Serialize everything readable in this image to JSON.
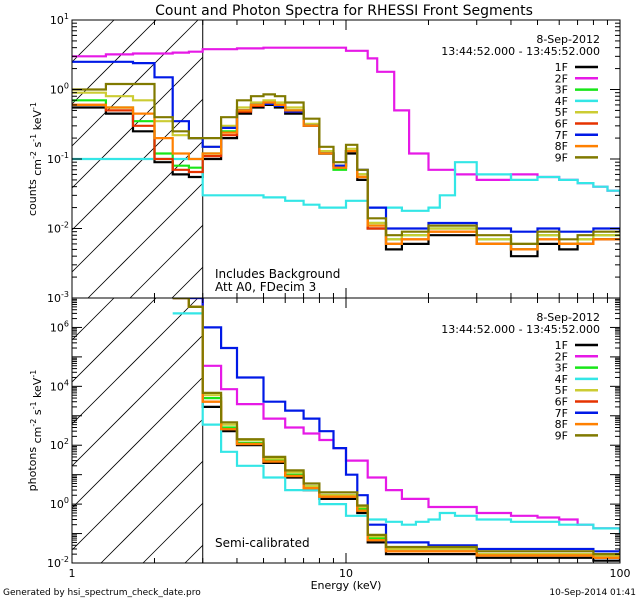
{
  "title": "Count and Photon Spectra for RHESSI Front Segments",
  "footer": {
    "left": "Generated by hsi_spectrum_check_date.pro",
    "right": "10-Sep-2014 01:41"
  },
  "colors": {
    "1F": "#000000",
    "2F": "#e619e6",
    "3F": "#19e619",
    "4F": "#33e6e6",
    "5F": "#cccc33",
    "6F": "#e63300",
    "7F": "#0019e6",
    "8F": "#ff8000",
    "9F": "#807a00"
  },
  "chart_data": [
    {
      "type": "line",
      "panel": "top",
      "title": "Count and Photon Spectra for RHESSI Front Segments",
      "xlabel": "Energy (keV)",
      "ylabel": "counts cm-2 s-1 keV-1",
      "xscale": "log",
      "yscale": "log",
      "xlim": [
        1,
        100
      ],
      "ylim": [
        0.001,
        10
      ],
      "x_ticks": [
        "1",
        "10",
        "100"
      ],
      "y_ticks": [
        "10-3",
        "10-2",
        "10-1",
        "100",
        "101"
      ],
      "date": "8-Sep-2012",
      "time_range": "13:44:52.000 - 13:45:52.000",
      "annotations": [
        "Includes Background",
        "Att A0, FDecim 3"
      ],
      "hatched_region_x": [
        1,
        3
      ],
      "legend": [
        "1F",
        "2F",
        "3F",
        "4F",
        "5F",
        "6F",
        "7F",
        "8F",
        "9F"
      ],
      "series": [
        {
          "name": "1F",
          "x": [
            1,
            1.33,
            1.67,
            2,
            2.33,
            2.67,
            3,
            3.5,
            4,
            4.5,
            5,
            5.5,
            6,
            7,
            8,
            9,
            10,
            11,
            12,
            14,
            16,
            20,
            30,
            40,
            50,
            60,
            70,
            80,
            100
          ],
          "y": [
            0.55,
            0.45,
            0.25,
            0.09,
            0.06,
            0.055,
            0.1,
            0.2,
            0.45,
            0.55,
            0.6,
            0.55,
            0.45,
            0.3,
            0.12,
            0.08,
            0.12,
            0.05,
            0.01,
            0.005,
            0.006,
            0.008,
            0.006,
            0.004,
            0.006,
            0.005,
            0.006,
            0.007,
            0.007
          ]
        },
        {
          "name": "2F",
          "x": [
            1,
            1.33,
            1.67,
            2,
            2.33,
            2.67,
            3,
            4,
            5,
            6,
            8,
            10,
            12,
            13,
            15,
            17,
            20,
            25,
            30,
            40,
            50,
            60,
            70,
            80,
            90,
            100
          ],
          "y": [
            3.0,
            3.2,
            3.3,
            3.3,
            3.4,
            3.5,
            3.8,
            3.9,
            4.0,
            4.0,
            4.0,
            3.6,
            2.8,
            1.8,
            0.5,
            0.12,
            0.07,
            0.06,
            0.05,
            0.06,
            0.055,
            0.05,
            0.045,
            0.04,
            0.035,
            0.03
          ]
        },
        {
          "name": "3F",
          "x": [
            1,
            1.33,
            1.67,
            2,
            2.33,
            2.67,
            3,
            3.5,
            4,
            4.5,
            5,
            5.5,
            6,
            7,
            8,
            9,
            10,
            11,
            12,
            14,
            16,
            20,
            30,
            40,
            50,
            60,
            70,
            80,
            100
          ],
          "y": [
            0.7,
            0.55,
            0.35,
            0.12,
            0.08,
            0.075,
            0.12,
            0.25,
            0.5,
            0.6,
            0.65,
            0.6,
            0.5,
            0.3,
            0.12,
            0.07,
            0.13,
            0.06,
            0.012,
            0.007,
            0.008,
            0.01,
            0.007,
            0.005,
            0.008,
            0.006,
            0.007,
            0.008,
            0.008
          ]
        },
        {
          "name": "4F",
          "x": [
            1,
            1.33,
            1.67,
            2,
            2.33,
            2.67,
            3,
            4,
            5,
            6,
            7,
            8,
            9,
            10,
            12,
            14,
            16,
            18,
            20,
            22,
            25,
            30,
            40,
            50,
            60,
            70,
            80,
            90,
            100
          ],
          "y": [
            0.1,
            0.1,
            0.1,
            0.1,
            0.1,
            0.1,
            0.03,
            0.03,
            0.028,
            0.025,
            0.022,
            0.02,
            0.02,
            0.025,
            0.02,
            0.02,
            0.018,
            0.018,
            0.02,
            0.03,
            0.09,
            0.06,
            0.05,
            0.055,
            0.05,
            0.045,
            0.04,
            0.035,
            0.03
          ]
        },
        {
          "name": "5F",
          "x": [
            1,
            1.33,
            1.67,
            2,
            2.33,
            2.67,
            3,
            3.5,
            4,
            4.5,
            5,
            5.5,
            6,
            7,
            8,
            9,
            10,
            11,
            12,
            14,
            16,
            20,
            30,
            40,
            50,
            60,
            70,
            80,
            100
          ],
          "y": [
            0.9,
            0.8,
            0.7,
            0.35,
            0.22,
            0.2,
            0.15,
            0.3,
            0.55,
            0.65,
            0.7,
            0.65,
            0.55,
            0.32,
            0.13,
            0.08,
            0.14,
            0.06,
            0.012,
            0.007,
            0.008,
            0.01,
            0.007,
            0.006,
            0.008,
            0.006,
            0.007,
            0.008,
            0.008
          ]
        },
        {
          "name": "6F",
          "x": [
            1,
            1.33,
            1.67,
            2,
            2.33,
            2.67,
            3,
            3.5,
            4,
            4.5,
            5,
            5.5,
            6,
            7,
            8,
            9,
            10,
            11,
            12,
            14,
            16,
            20,
            30,
            40,
            50,
            60,
            70,
            80,
            100
          ],
          "y": [
            0.6,
            0.5,
            0.3,
            0.1,
            0.07,
            0.065,
            0.11,
            0.22,
            0.48,
            0.58,
            0.62,
            0.58,
            0.48,
            0.3,
            0.12,
            0.075,
            0.13,
            0.055,
            0.01,
            0.006,
            0.007,
            0.009,
            0.006,
            0.005,
            0.007,
            0.006,
            0.006,
            0.007,
            0.007
          ]
        },
        {
          "name": "7F",
          "x": [
            1,
            1.33,
            1.67,
            2,
            2.33,
            2.67,
            3,
            3.5,
            4,
            4.5,
            5,
            5.5,
            6,
            7,
            8,
            9,
            10,
            11,
            12,
            14,
            16,
            20,
            30,
            40,
            50,
            60,
            70,
            80,
            100
          ],
          "y": [
            2.5,
            2.5,
            2.4,
            1.5,
            0.35,
            0.2,
            0.15,
            0.28,
            0.5,
            0.6,
            0.62,
            0.58,
            0.48,
            0.3,
            0.12,
            0.08,
            0.13,
            0.07,
            0.02,
            0.01,
            0.01,
            0.012,
            0.01,
            0.009,
            0.01,
            0.009,
            0.009,
            0.01,
            0.009
          ]
        },
        {
          "name": "8F",
          "x": [
            1,
            1.33,
            1.67,
            2,
            2.33,
            2.67,
            3,
            3.5,
            4,
            4.5,
            5,
            5.5,
            6,
            7,
            8,
            9,
            10,
            11,
            12,
            14,
            16,
            20,
            30,
            40,
            50,
            60,
            70,
            80,
            100
          ],
          "y": [
            0.6,
            0.55,
            0.45,
            0.2,
            0.12,
            0.1,
            0.12,
            0.24,
            0.5,
            0.6,
            0.65,
            0.6,
            0.5,
            0.3,
            0.12,
            0.075,
            0.13,
            0.055,
            0.011,
            0.006,
            0.007,
            0.009,
            0.006,
            0.005,
            0.007,
            0.006,
            0.006,
            0.007,
            0.007
          ]
        },
        {
          "name": "9F",
          "x": [
            1,
            1.33,
            1.67,
            2,
            2.33,
            2.67,
            3,
            3.5,
            4,
            4.5,
            5,
            5.5,
            6,
            7,
            8,
            9,
            10,
            11,
            12,
            14,
            16,
            20,
            30,
            40,
            50,
            60,
            70,
            80,
            100
          ],
          "y": [
            1.0,
            1.2,
            1.2,
            0.4,
            0.25,
            0.2,
            0.2,
            0.4,
            0.7,
            0.8,
            0.85,
            0.8,
            0.65,
            0.38,
            0.15,
            0.09,
            0.16,
            0.07,
            0.014,
            0.008,
            0.009,
            0.011,
            0.008,
            0.006,
            0.009,
            0.007,
            0.008,
            0.009,
            0.009
          ]
        }
      ]
    },
    {
      "type": "line",
      "panel": "bottom",
      "xlabel": "Energy (keV)",
      "ylabel": "photons cm-2 s-1 keV-1",
      "xscale": "log",
      "yscale": "log",
      "xlim": [
        1,
        100
      ],
      "ylim": [
        0.01,
        10000000
      ],
      "x_ticks": [
        "1",
        "10",
        "100"
      ],
      "y_ticks": [
        "10-2",
        "100",
        "102",
        "104",
        "106"
      ],
      "date": "8-Sep-2012",
      "time_range": "13:44:52.000 - 13:45:52.000",
      "annotations": [
        "Semi-calibrated"
      ],
      "hatched_region_x": [
        1,
        3
      ],
      "legend": [
        "1F",
        "2F",
        "3F",
        "4F",
        "5F",
        "6F",
        "7F",
        "8F",
        "9F"
      ],
      "series": [
        {
          "name": "1F",
          "x": [
            2.33,
            2.67,
            3,
            3.5,
            4,
            5,
            6,
            7,
            8,
            9,
            10,
            11,
            12,
            14,
            20,
            30,
            40,
            60,
            80,
            100
          ],
          "y": [
            10000000,
            5000000,
            2000,
            300,
            100,
            25,
            8,
            3,
            1.5,
            1.5,
            1.5,
            0.5,
            0.05,
            0.02,
            0.02,
            0.015,
            0.015,
            0.015,
            0.012,
            0.015
          ]
        },
        {
          "name": "2F",
          "x": [
            2.33,
            2.67,
            3,
            3.5,
            4,
            5,
            6,
            7,
            8,
            9,
            10,
            12,
            14,
            16,
            20,
            30,
            40,
            50,
            60,
            70,
            80,
            100
          ],
          "y": [
            10000000,
            10000000,
            50000,
            8000,
            2500,
            800,
            400,
            250,
            150,
            80,
            30,
            8,
            3,
            1.5,
            0.8,
            0.5,
            0.4,
            0.35,
            0.3,
            0.2,
            0.15,
            0.1
          ]
        },
        {
          "name": "3F",
          "x": [
            2.33,
            2.67,
            3,
            3.5,
            4,
            5,
            6,
            7,
            8,
            9,
            10,
            11,
            12,
            14,
            20,
            30,
            40,
            60,
            80,
            100
          ],
          "y": [
            10000000,
            5000000,
            4000,
            400,
            120,
            30,
            10,
            4,
            2,
            2,
            2,
            0.7,
            0.07,
            0.03,
            0.03,
            0.02,
            0.02,
            0.02,
            0.018,
            0.02
          ]
        },
        {
          "name": "4F",
          "x": [
            2.33,
            2.67,
            3,
            3.5,
            4,
            5,
            6,
            8,
            10,
            12,
            14,
            16,
            18,
            20,
            22,
            25,
            30,
            40,
            60,
            80,
            100
          ],
          "y": [
            3000000,
            3000000,
            500,
            60,
            20,
            8,
            3,
            1,
            0.4,
            0.3,
            0.25,
            0.2,
            0.25,
            0.3,
            0.5,
            0.4,
            0.3,
            0.25,
            0.2,
            0.15,
            0.1
          ]
        },
        {
          "name": "5F",
          "x": [
            2.33,
            2.67,
            3,
            3.5,
            4,
            5,
            6,
            7,
            8,
            9,
            10,
            11,
            12,
            14,
            20,
            30,
            40,
            60,
            80,
            100
          ],
          "y": [
            10000000,
            5000000,
            5000,
            500,
            150,
            35,
            12,
            4,
            2,
            2,
            2,
            0.8,
            0.08,
            0.03,
            0.03,
            0.02,
            0.02,
            0.02,
            0.018,
            0.02
          ]
        },
        {
          "name": "6F",
          "x": [
            2.33,
            2.67,
            3,
            3.5,
            4,
            5,
            6,
            7,
            8,
            9,
            10,
            11,
            12,
            14,
            20,
            30,
            40,
            60,
            80,
            100
          ],
          "y": [
            10000000,
            5000000,
            3000,
            350,
            110,
            28,
            9,
            3.5,
            1.8,
            1.8,
            1.8,
            0.6,
            0.06,
            0.025,
            0.025,
            0.018,
            0.018,
            0.018,
            0.015,
            0.018
          ]
        },
        {
          "name": "7F",
          "x": [
            2.33,
            2.67,
            3,
            3.5,
            4,
            5,
            6,
            7,
            8,
            9,
            10,
            11,
            12,
            14,
            20,
            30,
            40,
            60,
            80,
            100
          ],
          "y": [
            10000000,
            10000000,
            1000000,
            200000,
            20000,
            3000,
            1500,
            800,
            300,
            80,
            10,
            2,
            0.2,
            0.05,
            0.04,
            0.03,
            0.03,
            0.03,
            0.025,
            0.03
          ]
        },
        {
          "name": "8F",
          "x": [
            2.33,
            2.67,
            3,
            3.5,
            4,
            5,
            6,
            7,
            8,
            9,
            10,
            11,
            12,
            14,
            20,
            30,
            40,
            60,
            80,
            100
          ],
          "y": [
            10000000,
            5000000,
            3000,
            350,
            110,
            28,
            9,
            3.5,
            1.8,
            1.8,
            1.8,
            0.6,
            0.06,
            0.025,
            0.025,
            0.018,
            0.018,
            0.018,
            0.015,
            0.018
          ]
        },
        {
          "name": "9F",
          "x": [
            2.33,
            2.67,
            3,
            3.5,
            4,
            5,
            6,
            7,
            8,
            9,
            10,
            11,
            12,
            14,
            20,
            30,
            40,
            60,
            80,
            100
          ],
          "y": [
            10000000,
            5000000,
            6000,
            600,
            160,
            40,
            14,
            5,
            2.5,
            2.5,
            2.5,
            0.9,
            0.09,
            0.035,
            0.035,
            0.025,
            0.025,
            0.025,
            0.02,
            0.025
          ]
        }
      ]
    }
  ]
}
